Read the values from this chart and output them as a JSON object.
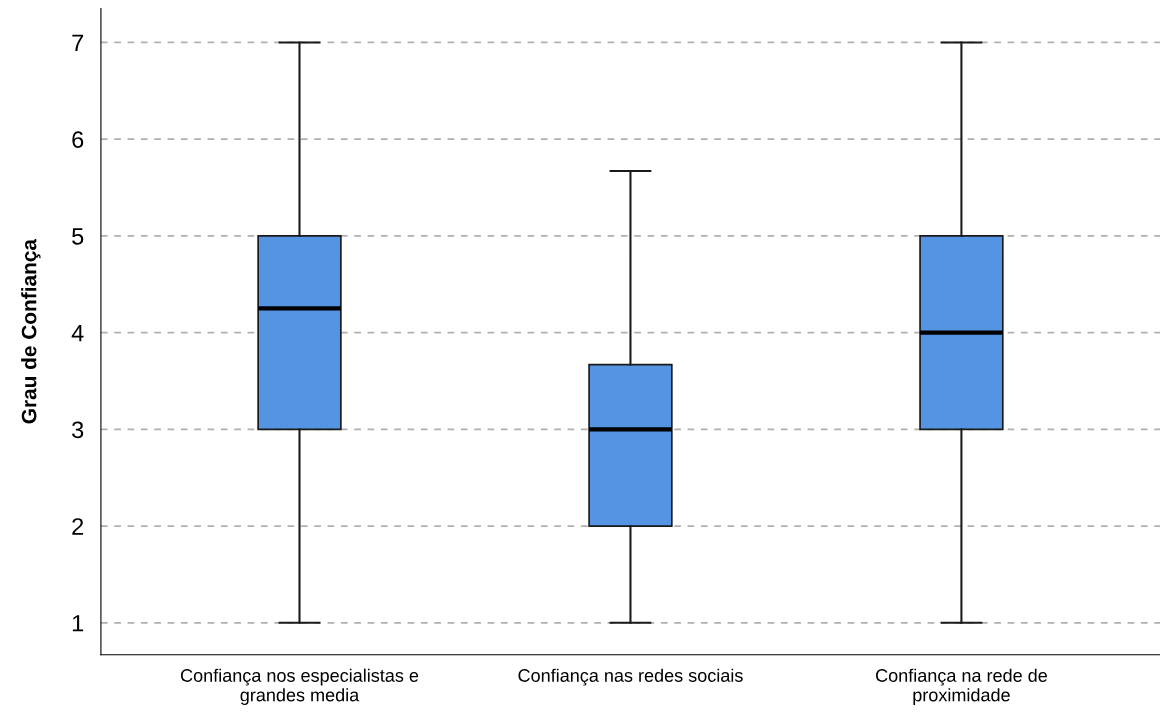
{
  "chart_data": {
    "type": "box",
    "ylabel": "Grau de Confiança",
    "categories": [
      "Confiança nos especialistas e\ngrandes media",
      "Confiança nas redes sociais",
      "Confiança na rede de\nproximidade"
    ],
    "series": [
      {
        "color": "#5593e3",
        "boxes": [
          {
            "low": 1,
            "q1": 3,
            "median": 4.25,
            "q3": 5,
            "high": 7
          },
          {
            "low": 1,
            "q1": 2,
            "median": 3,
            "q3": 3.67,
            "high": 5.67
          },
          {
            "low": 1,
            "q1": 3,
            "median": 4,
            "q3": 5,
            "high": 7
          }
        ]
      }
    ],
    "ylim": [
      0.67,
      7.35
    ],
    "yticks": [
      1,
      2,
      3,
      4,
      5,
      6,
      7
    ],
    "grid": "y"
  }
}
